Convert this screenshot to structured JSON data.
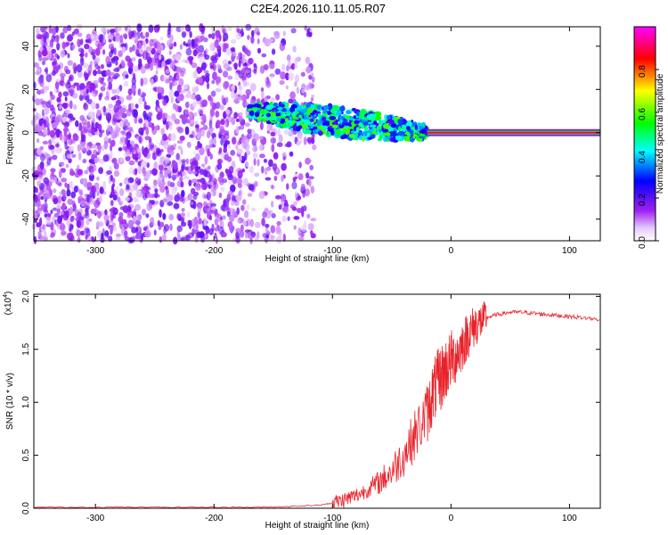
{
  "figure": {
    "title": "C2E4.2026.110.11.05.R07"
  },
  "chart_data": [
    {
      "type": "heatmap",
      "xlabel": "Height of straight line (km)",
      "ylabel": "Frequency (Hz)",
      "xlim": [
        -352,
        126
      ],
      "ylim": [
        -50,
        49
      ],
      "xticks": [
        -300,
        -200,
        -100,
        0,
        100
      ],
      "yticks": [
        -40,
        -20,
        0,
        20,
        40
      ],
      "colorbar": {
        "label": "Normalized spectral amplitude",
        "range": [
          0,
          1
        ],
        "ticks": [
          0.0,
          0.2,
          0.4,
          0.6,
          0.8
        ],
        "colormap": [
          "#ffffff",
          "#a020f0",
          "#0000ff",
          "#00ffff",
          "#00ff00",
          "#ffff00",
          "#ff0000",
          "#ff00ff"
        ]
      },
      "regions": [
        {
          "name": "noise",
          "x": [
            -352,
            -115
          ],
          "freq": [
            -50,
            49
          ],
          "amplitude": [
            0.05,
            0.2
          ]
        },
        {
          "name": "signal",
          "x": [
            -170,
            -20
          ],
          "freq_center_start": 10,
          "freq_center_end": 0,
          "amplitude": [
            0.2,
            0.6
          ]
        },
        {
          "name": "tone",
          "x": [
            -20,
            126
          ],
          "freq": 0,
          "amplitude": 0.9
        }
      ],
      "grid": false,
      "legend": "colorbar-right"
    },
    {
      "type": "line",
      "xlabel": "Height of straight line (km)",
      "ylabel": "SNR (10 * v/v)",
      "y_multiplier": "(x10",
      "y_multiplier_exp": "4",
      "multiplier_close": ")",
      "xlim": [
        -352,
        126
      ],
      "ylim": [
        0,
        2.02
      ],
      "xticks": [
        -300,
        -200,
        -100,
        0,
        100
      ],
      "yticks": [
        0.0,
        0.5,
        1.0,
        1.5,
        2.0
      ],
      "color": "#e8232a",
      "series": [
        {
          "x": [
            -352,
            -300,
            -250,
            -200,
            -160,
            -130,
            -110,
            -100,
            -90,
            -80,
            -70,
            -60,
            -50,
            -40,
            -30,
            -20,
            -15,
            -10,
            -5,
            0,
            5,
            10,
            15,
            20,
            25,
            30,
            40,
            50,
            60,
            70,
            80,
            90,
            100,
            110,
            126
          ],
          "y": [
            0.01,
            0.01,
            0.01,
            0.01,
            0.01,
            0.02,
            0.03,
            0.05,
            0.08,
            0.12,
            0.18,
            0.25,
            0.35,
            0.5,
            0.7,
            0.9,
            1.1,
            1.2,
            1.3,
            1.4,
            1.45,
            1.55,
            1.65,
            1.72,
            1.76,
            1.8,
            1.83,
            1.85,
            1.85,
            1.84,
            1.83,
            1.82,
            1.81,
            1.8,
            1.78
          ]
        }
      ],
      "grid": false
    }
  ]
}
